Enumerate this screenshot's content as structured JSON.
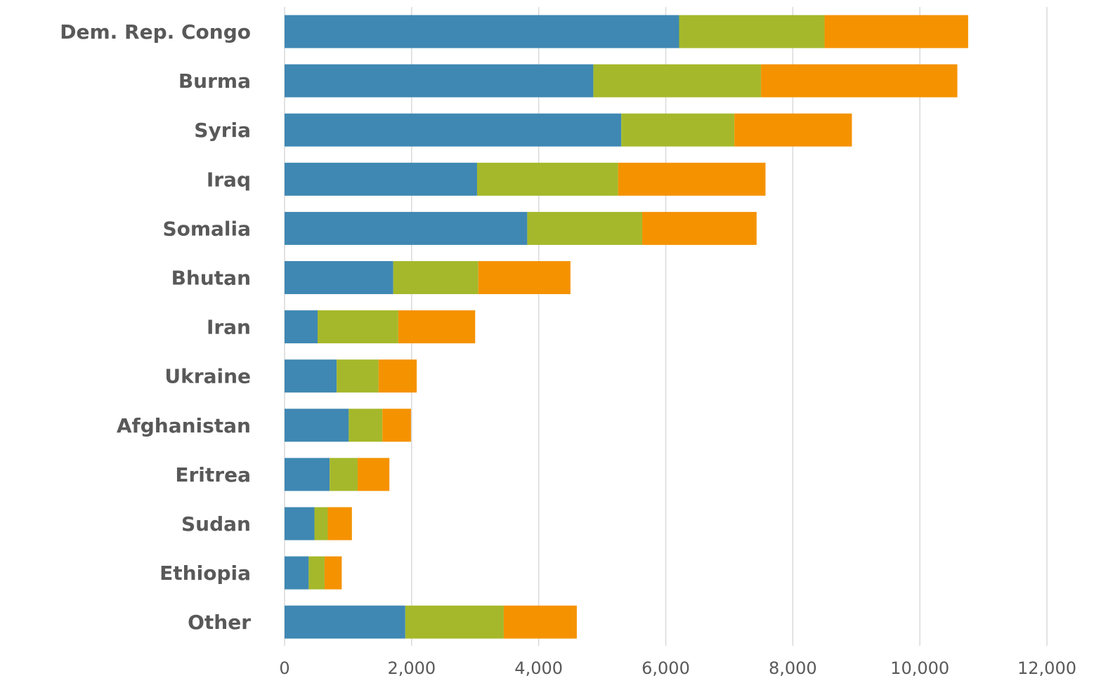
{
  "chart_data": {
    "type": "bar",
    "orientation": "horizontal",
    "stacked": true,
    "categories": [
      "Dem. Rep. Congo",
      "Burma",
      "Syria",
      "Iraq",
      "Somalia",
      "Bhutan",
      "Iran",
      "Ukraine",
      "Afghanistan",
      "Eritrea",
      "Sudan",
      "Ethiopia",
      "Other"
    ],
    "series": [
      {
        "color": "#3f88b3",
        "values": [
          6210,
          4860,
          5300,
          3030,
          3820,
          1710,
          520,
          820,
          1010,
          710,
          470,
          380,
          1900
        ]
      },
      {
        "color": "#a5b82b",
        "values": [
          2290,
          2640,
          1780,
          2220,
          1810,
          1340,
          1270,
          660,
          530,
          440,
          210,
          250,
          1550
        ]
      },
      {
        "color": "#f59200",
        "values": [
          2260,
          3090,
          1850,
          2320,
          1800,
          1450,
          1210,
          600,
          450,
          500,
          380,
          270,
          1150
        ]
      }
    ],
    "title": "",
    "xlabel": "",
    "ylabel": "",
    "xlim": [
      0,
      12000
    ],
    "xticks": [
      0,
      2000,
      4000,
      6000,
      8000,
      10000,
      12000
    ],
    "xtick_labels": [
      "0",
      "2,000",
      "4,000",
      "6,000",
      "8,000",
      "10,000",
      "12,000"
    ],
    "grid": "vertical",
    "legend": "none"
  }
}
